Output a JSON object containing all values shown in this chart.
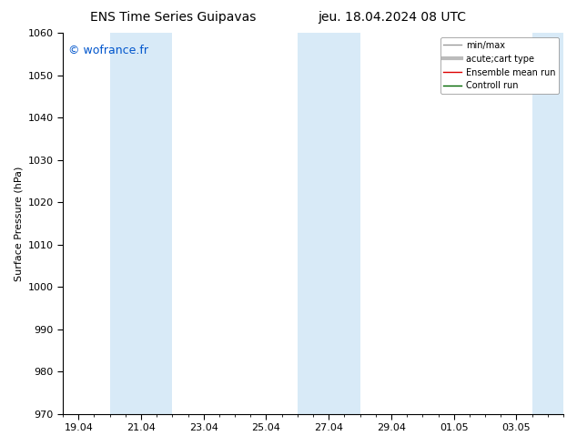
{
  "title_left": "ENS Time Series Guipavas",
  "title_right": "jeu. 18.04.2024 08 UTC",
  "ylabel": "Surface Pressure (hPa)",
  "ylim": [
    970,
    1060
  ],
  "yticks": [
    970,
    980,
    990,
    1000,
    1010,
    1020,
    1030,
    1040,
    1050,
    1060
  ],
  "xlim": [
    0,
    16
  ],
  "xtick_labels": [
    "19.04",
    "21.04",
    "23.04",
    "25.04",
    "27.04",
    "29.04",
    "01.05",
    "03.05"
  ],
  "xtick_positions": [
    0.5,
    2.5,
    4.5,
    6.5,
    8.5,
    10.5,
    12.5,
    14.5
  ],
  "shaded_bands": [
    {
      "x_start": 1.5,
      "x_end": 3.5
    },
    {
      "x_start": 7.5,
      "x_end": 9.5
    },
    {
      "x_start": 15.0,
      "x_end": 16.0
    }
  ],
  "shaded_color": "#d8eaf7",
  "watermark": "© wofrance.fr",
  "watermark_color": "#0055cc",
  "background_color": "#ffffff",
  "legend_entries": [
    {
      "label": "min/max",
      "color": "#999999",
      "lw": 1
    },
    {
      "label": "acute;cart type",
      "color": "#bbbbbb",
      "lw": 3
    },
    {
      "label": "Ensemble mean run",
      "color": "#dd0000",
      "lw": 1
    },
    {
      "label": "Controll run",
      "color": "#006600",
      "lw": 1
    }
  ],
  "title_fontsize": 10,
  "ylabel_fontsize": 8,
  "tick_fontsize": 8,
  "watermark_fontsize": 9,
  "legend_fontsize": 7
}
